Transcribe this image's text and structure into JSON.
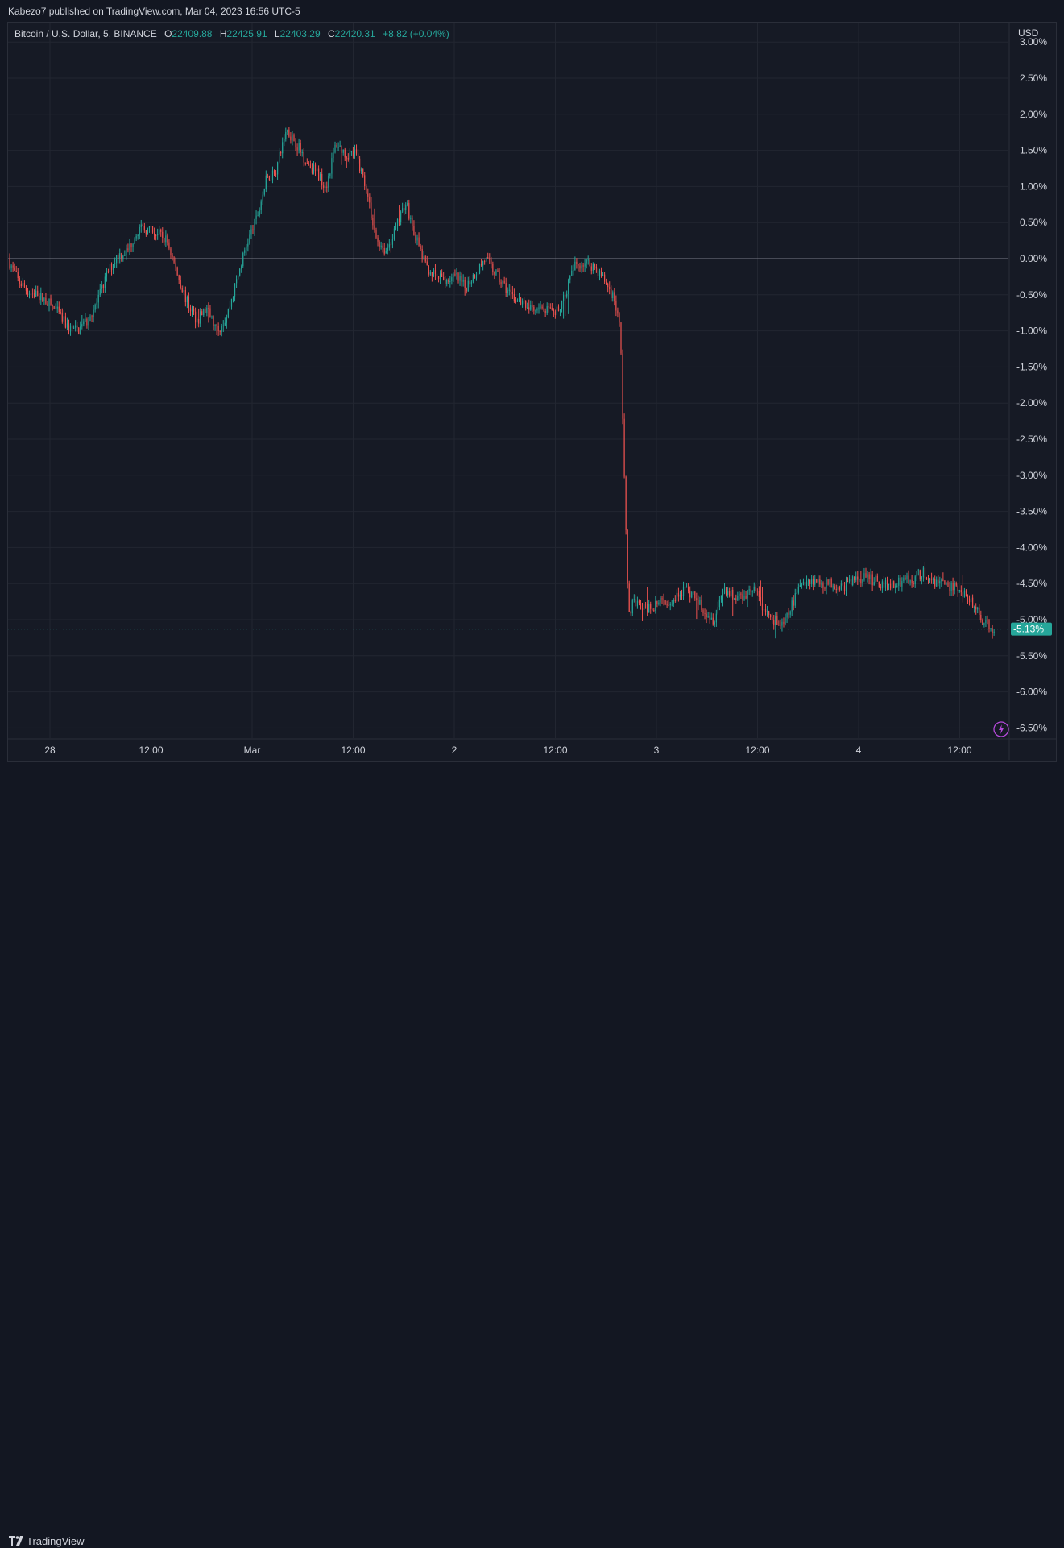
{
  "header": {
    "published": "Kabezo7 published on TradingView.com, Mar 04, 2023 16:56 UTC-5"
  },
  "legend": {
    "symbol": "Bitcoin / U.S. Dollar, 5, BINANCE",
    "o_label": "O",
    "o_value": "22409.88",
    "h_label": "H",
    "h_value": "22425.91",
    "l_label": "L",
    "l_value": "22403.29",
    "c_label": "C",
    "c_value": "22420.31",
    "change": "+8.82 (+0.04%)"
  },
  "footer": {
    "brand": "TradingView",
    "brand_icon": "tradingview-logo-icon"
  },
  "colors": {
    "up": "#26a69a",
    "down": "#ef5350",
    "background": "#161a25",
    "text": "#d1d4dc",
    "grid": "#232734"
  },
  "chart_data": {
    "type": "candlestick",
    "symbol": "Bitcoin / U.S. Dollar",
    "interval": "5",
    "exchange": "BINANCE",
    "y_unit": "percent change",
    "currency": "USD",
    "ylim": [
      -6.75,
      3.0
    ],
    "y_ticks": [
      "3.00%",
      "2.50%",
      "2.00%",
      "1.50%",
      "1.00%",
      "0.50%",
      "0.00%",
      "-0.50%",
      "-1.00%",
      "-1.50%",
      "-2.00%",
      "-2.50%",
      "-3.00%",
      "-3.50%",
      "-4.00%",
      "-4.50%",
      "-5.00%",
      "-5.50%",
      "-6.00%",
      "-6.50%"
    ],
    "x_ticks": [
      "28",
      "12:00",
      "Mar",
      "12:00",
      "2",
      "12:00",
      "3",
      "12:00",
      "4",
      "12:00"
    ],
    "last_value_label": "-5.13%",
    "last_value": -5.13,
    "grid": true,
    "path": [
      [
        0,
        0.0
      ],
      [
        0.5,
        -0.3
      ],
      [
        1.0,
        -0.45
      ],
      [
        1.5,
        -0.5
      ],
      [
        2.0,
        -0.6
      ],
      [
        2.5,
        -0.75
      ],
      [
        3.0,
        -0.95
      ],
      [
        3.5,
        -1.0
      ],
      [
        4.0,
        -0.85
      ],
      [
        4.5,
        -0.6
      ],
      [
        5.0,
        -0.2
      ],
      [
        5.5,
        0.05
      ],
      [
        6.0,
        0.1
      ],
      [
        6.5,
        0.4
      ],
      [
        7.0,
        0.4
      ],
      [
        7.5,
        0.35
      ],
      [
        8.0,
        0.25
      ],
      [
        8.5,
        -0.2
      ],
      [
        9.0,
        -0.6
      ],
      [
        9.5,
        -0.85
      ],
      [
        10.0,
        -0.7
      ],
      [
        10.5,
        -1.0
      ],
      [
        11.0,
        -0.8
      ],
      [
        11.5,
        -0.3
      ],
      [
        12.0,
        0.2
      ],
      [
        12.5,
        0.55
      ],
      [
        13.0,
        1.1
      ],
      [
        13.5,
        1.25
      ],
      [
        14.0,
        1.8
      ],
      [
        14.5,
        1.6
      ],
      [
        15.0,
        1.35
      ],
      [
        15.5,
        1.2
      ],
      [
        16.0,
        1.0
      ],
      [
        16.5,
        1.6
      ],
      [
        17.0,
        1.45
      ],
      [
        17.5,
        1.45
      ],
      [
        18.0,
        1.0
      ],
      [
        18.5,
        0.3
      ],
      [
        19.0,
        0.1
      ],
      [
        19.5,
        0.4
      ],
      [
        20.0,
        0.8
      ],
      [
        20.5,
        0.3
      ],
      [
        21.0,
        -0.1
      ],
      [
        21.5,
        -0.25
      ],
      [
        22.0,
        -0.3
      ],
      [
        22.5,
        -0.25
      ],
      [
        23.0,
        -0.4
      ],
      [
        23.5,
        -0.2
      ],
      [
        24.0,
        0.0
      ],
      [
        24.5,
        -0.2
      ],
      [
        25.0,
        -0.4
      ],
      [
        25.5,
        -0.55
      ],
      [
        26.0,
        -0.65
      ],
      [
        26.5,
        -0.75
      ],
      [
        27.0,
        -0.7
      ],
      [
        27.5,
        -0.8
      ],
      [
        28.0,
        -0.5
      ],
      [
        28.5,
        -0.1
      ],
      [
        29.0,
        -0.05
      ],
      [
        29.5,
        -0.1
      ],
      [
        30.0,
        -0.3
      ],
      [
        30.5,
        -0.55
      ],
      [
        30.8,
        -1.0
      ],
      [
        31.0,
        -3.0
      ],
      [
        31.2,
        -4.9
      ],
      [
        31.5,
        -4.75
      ],
      [
        32.0,
        -4.85
      ],
      [
        32.5,
        -4.8
      ],
      [
        33.0,
        -4.75
      ],
      [
        33.5,
        -4.7
      ],
      [
        34.0,
        -4.6
      ],
      [
        34.5,
        -4.65
      ],
      [
        35.0,
        -4.85
      ],
      [
        35.5,
        -5.0
      ],
      [
        36.0,
        -4.55
      ],
      [
        36.5,
        -4.7
      ],
      [
        37.0,
        -4.65
      ],
      [
        37.5,
        -4.55
      ],
      [
        38.0,
        -4.85
      ],
      [
        38.5,
        -5.0
      ],
      [
        39.0,
        -5.1
      ],
      [
        39.5,
        -4.75
      ],
      [
        40.0,
        -4.45
      ],
      [
        40.5,
        -4.45
      ],
      [
        41.0,
        -4.5
      ],
      [
        41.5,
        -4.5
      ],
      [
        42.0,
        -4.55
      ],
      [
        42.5,
        -4.45
      ],
      [
        43.0,
        -4.4
      ],
      [
        43.5,
        -4.45
      ],
      [
        44.0,
        -4.5
      ],
      [
        44.5,
        -4.5
      ],
      [
        45.0,
        -4.45
      ],
      [
        45.5,
        -4.45
      ],
      [
        46.0,
        -4.35
      ],
      [
        46.5,
        -4.45
      ],
      [
        47.0,
        -4.5
      ],
      [
        47.5,
        -4.55
      ],
      [
        48.0,
        -4.6
      ],
      [
        48.5,
        -4.75
      ],
      [
        49.0,
        -5.0
      ],
      [
        49.5,
        -5.15
      ],
      [
        49.6,
        -5.13
      ]
    ],
    "x_domain": [
      0,
      50
    ]
  }
}
